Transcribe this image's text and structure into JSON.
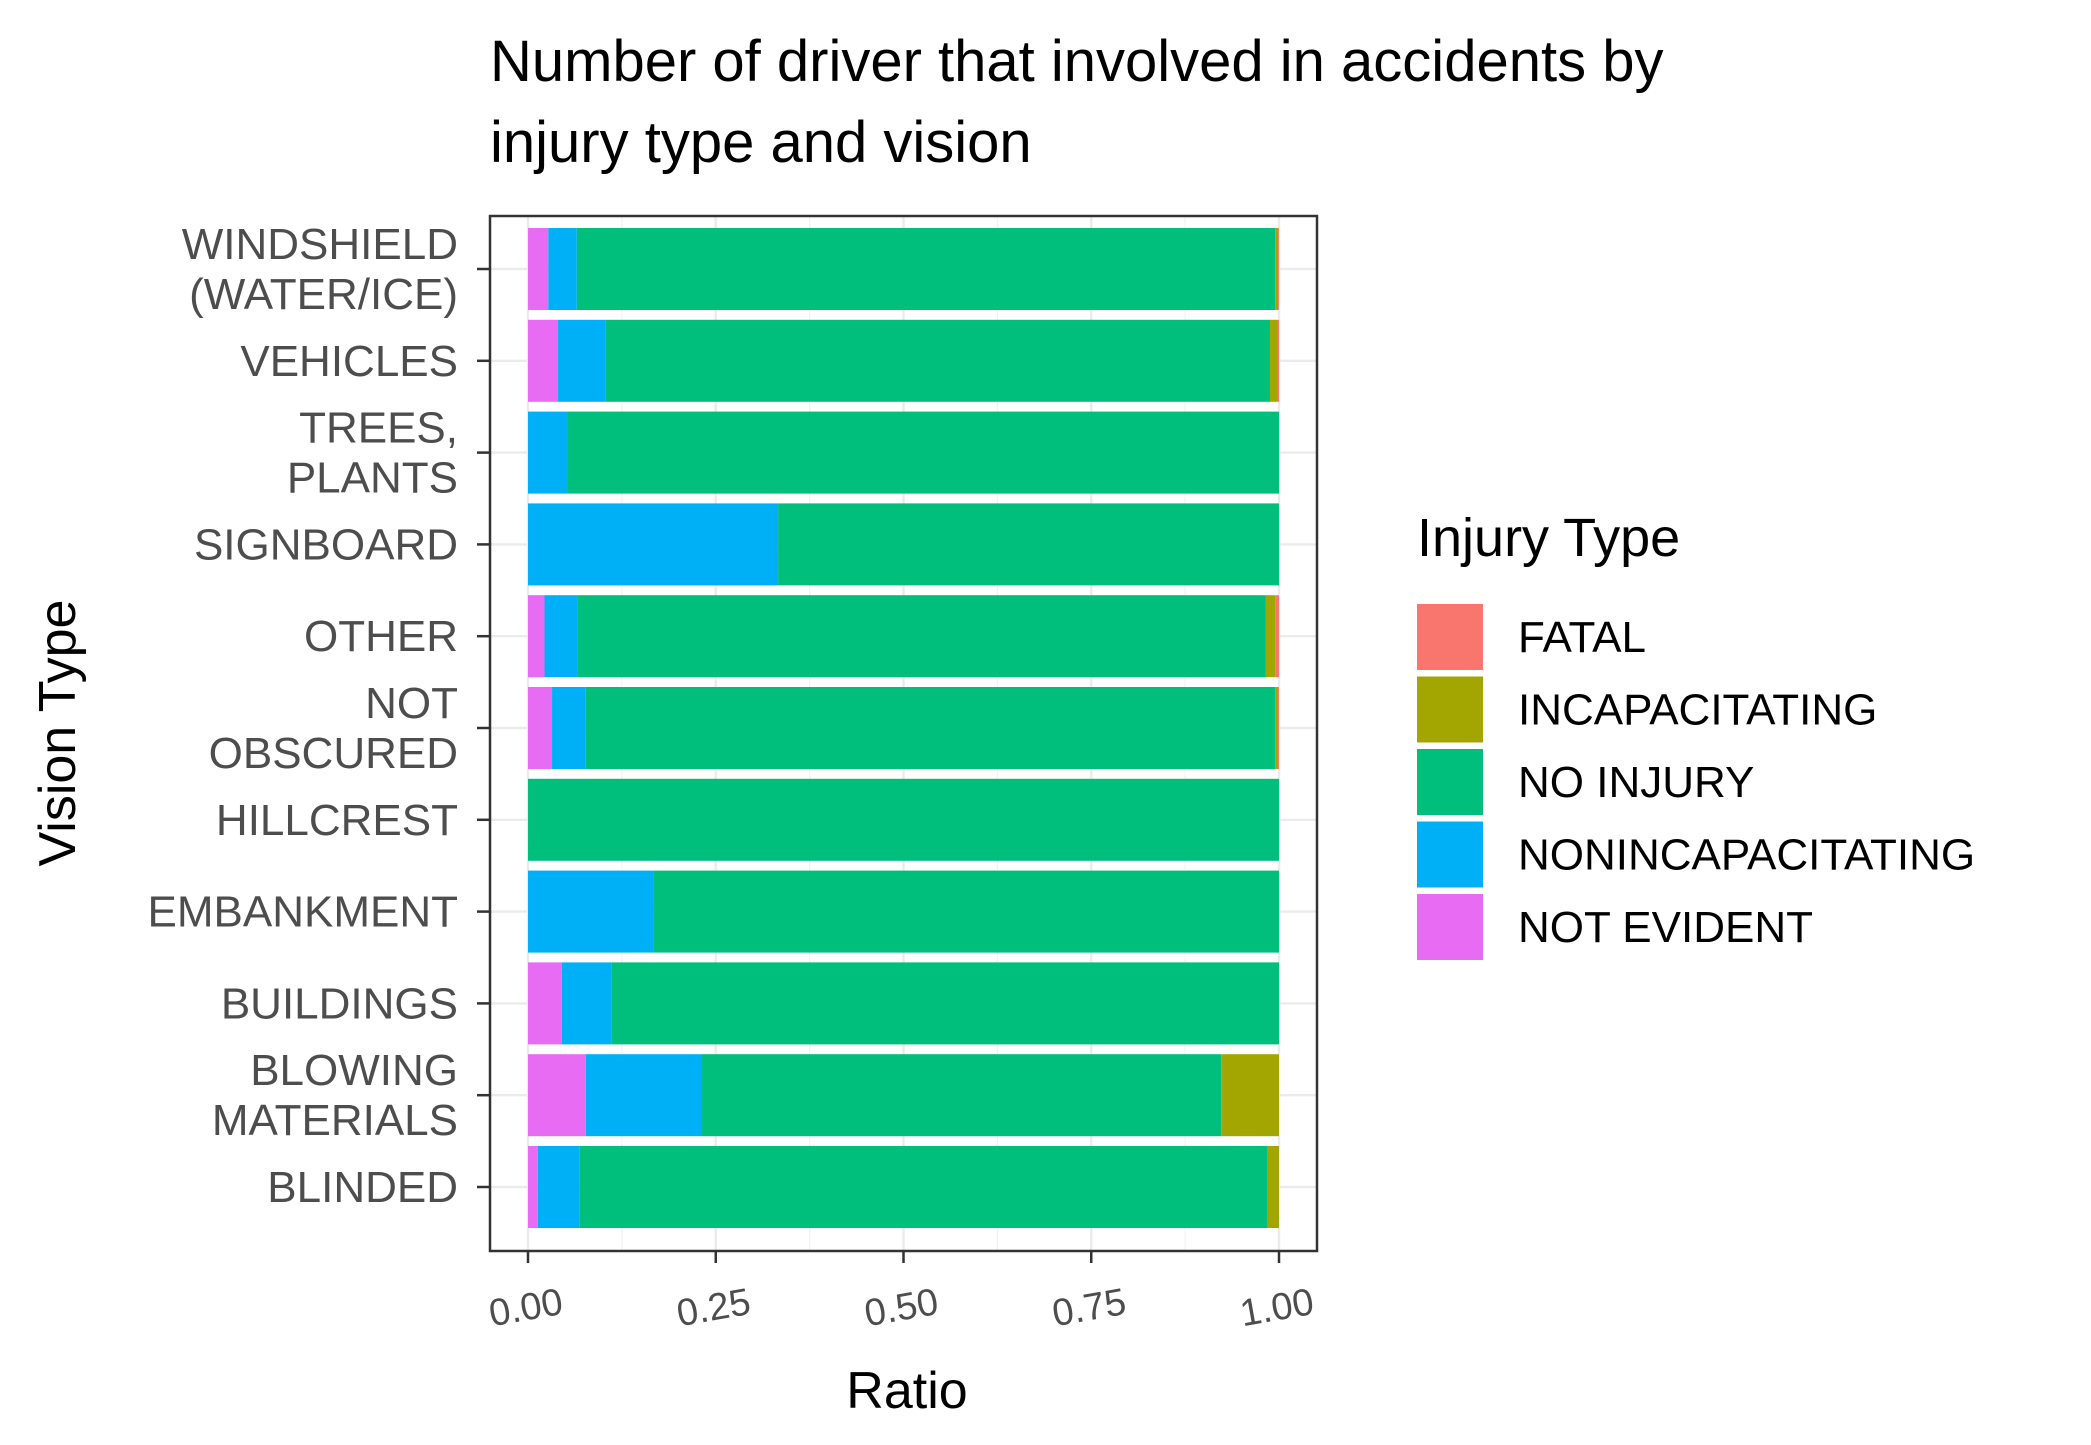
{
  "chart_data": {
    "type": "bar",
    "orientation": "horizontal",
    "stacked": true,
    "title_lines": [
      "Number of driver that involved in accidents by",
      "injury type and vision"
    ],
    "xlabel": "Ratio",
    "ylabel": "Vision Type",
    "xlim": [
      0,
      1
    ],
    "x_ticks": [
      "0.00",
      "0.25",
      "0.50",
      "0.75",
      "1.00"
    ],
    "grid": true,
    "legend": {
      "title": "Injury Type",
      "position": "right"
    },
    "categories": [
      {
        "key": "WINDSHIELD (WATER/ICE)",
        "lines": [
          "WINDSHIELD",
          "(WATER/ICE)"
        ]
      },
      {
        "key": "VEHICLES",
        "lines": [
          "VEHICLES"
        ]
      },
      {
        "key": "TREES, PLANTS",
        "lines": [
          "TREES,",
          "PLANTS"
        ]
      },
      {
        "key": "SIGNBOARD",
        "lines": [
          "SIGNBOARD"
        ]
      },
      {
        "key": "OTHER",
        "lines": [
          "OTHER"
        ]
      },
      {
        "key": "NOT OBSCURED",
        "lines": [
          "NOT",
          "OBSCURED"
        ]
      },
      {
        "key": "HILLCREST",
        "lines": [
          "HILLCREST"
        ]
      },
      {
        "key": "EMBANKMENT",
        "lines": [
          "EMBANKMENT"
        ]
      },
      {
        "key": "BUILDINGS",
        "lines": [
          "BUILDINGS"
        ]
      },
      {
        "key": "BLOWING MATERIALS",
        "lines": [
          "BLOWING",
          "MATERIALS"
        ]
      },
      {
        "key": "BLINDED",
        "lines": [
          "BLINDED"
        ]
      }
    ],
    "series": [
      {
        "name": "NOT EVIDENT",
        "color": "#E76BF3",
        "values": [
          0.027,
          0.04,
          0.0,
          0.0,
          0.022,
          0.032,
          0.0,
          0.0,
          0.045,
          0.077,
          0.013
        ]
      },
      {
        "name": "NONINCAPACITATING",
        "color": "#00B0F6",
        "values": [
          0.038,
          0.063,
          0.052,
          0.333,
          0.044,
          0.045,
          0.0,
          0.167,
          0.066,
          0.154,
          0.056
        ]
      },
      {
        "name": "NO INJURY",
        "color": "#00BF7D",
        "values": [
          0.93,
          0.885,
          0.948,
          0.667,
          0.916,
          0.918,
          1.0,
          0.833,
          0.889,
          0.692,
          0.915
        ]
      },
      {
        "name": "INCAPACITATING",
        "color": "#A3A500",
        "values": [
          0.004,
          0.01,
          0.0,
          0.0,
          0.013,
          0.004,
          0.0,
          0.0,
          0.0,
          0.077,
          0.016
        ]
      },
      {
        "name": "FATAL",
        "color": "#F8766D",
        "values": [
          0.001,
          0.002,
          0.0,
          0.0,
          0.005,
          0.001,
          0.0,
          0.0,
          0.0,
          0.0,
          0.0
        ]
      }
    ],
    "legend_order": [
      "FATAL",
      "INCAPACITATING",
      "NO INJURY",
      "NONINCAPACITATING",
      "NOT EVIDENT"
    ]
  }
}
